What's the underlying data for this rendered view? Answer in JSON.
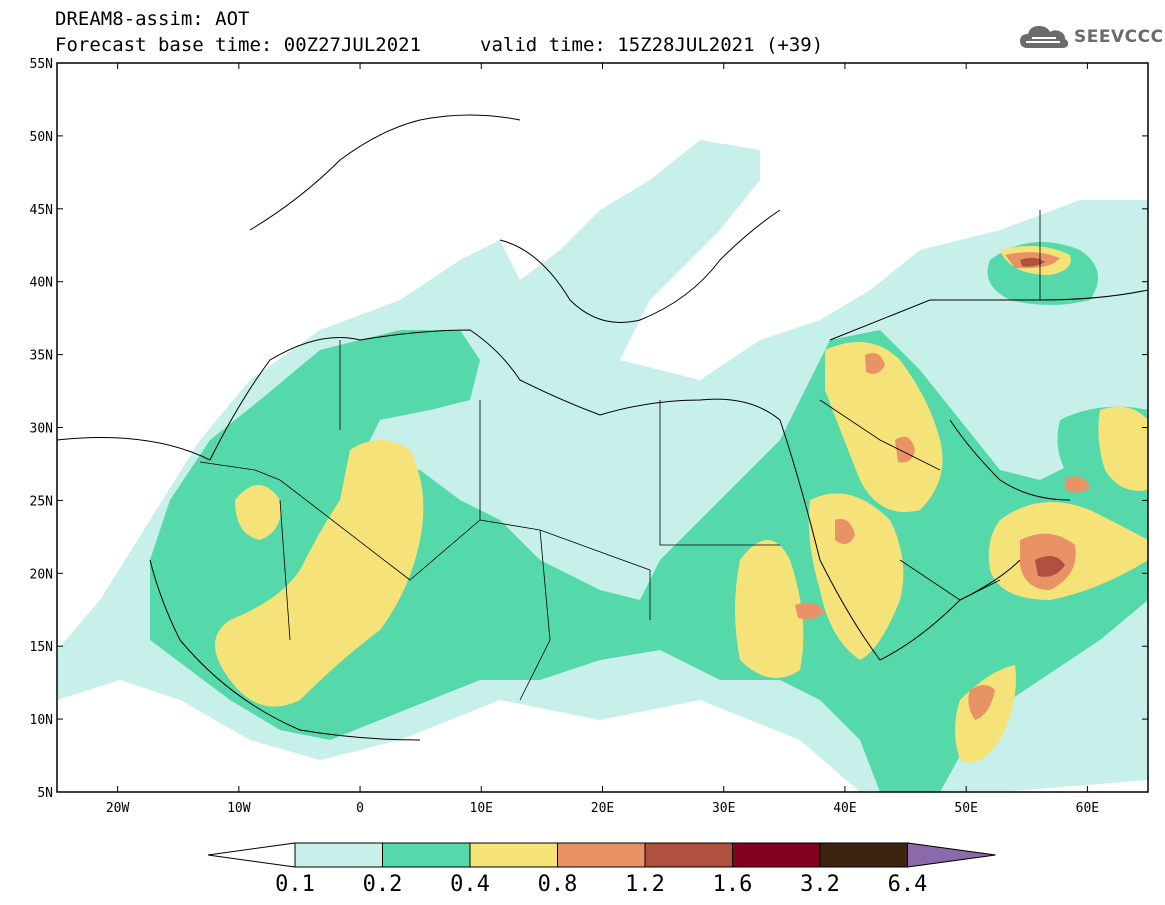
{
  "header": {
    "line1": "DREAM8-assim: AOT",
    "line2": "Forecast base time: 00Z27JUL2021",
    "valid": "valid time: 15Z28JUL2021 (+39)",
    "logo_text": "SEEVCCC",
    "logo_icon": "cloud-icon"
  },
  "map": {
    "lon_min": -25,
    "lon_max": 65,
    "lat_min": 5,
    "lat_max": 55,
    "lat_ticks": [
      {
        "value": 55,
        "label": "55N"
      },
      {
        "value": 50,
        "label": "50N"
      },
      {
        "value": 45,
        "label": "45N"
      },
      {
        "value": 40,
        "label": "40N"
      },
      {
        "value": 35,
        "label": "35N"
      },
      {
        "value": 30,
        "label": "30N"
      },
      {
        "value": 25,
        "label": "25N"
      },
      {
        "value": 20,
        "label": "20N"
      },
      {
        "value": 15,
        "label": "15N"
      },
      {
        "value": 10,
        "label": "10N"
      },
      {
        "value": 5,
        "label": "5N"
      }
    ],
    "lon_ticks": [
      {
        "value": -20,
        "label": "20W"
      },
      {
        "value": -10,
        "label": "10W"
      },
      {
        "value": 0,
        "label": "0"
      },
      {
        "value": 10,
        "label": "10E"
      },
      {
        "value": 20,
        "label": "20E"
      },
      {
        "value": 30,
        "label": "30E"
      },
      {
        "value": 40,
        "label": "40E"
      },
      {
        "value": 50,
        "label": "50E"
      },
      {
        "value": 60,
        "label": "60E"
      }
    ]
  },
  "legend": {
    "colors": [
      "#ffffff",
      "#c8f0ea",
      "#55d9aa",
      "#f5e37a",
      "#e89266",
      "#b0503e",
      "#820020",
      "#3c2410",
      "#8a6aa8"
    ],
    "labels": [
      "0.1",
      "0.2",
      "0.4",
      "0.8",
      "1.2",
      "1.6",
      "3.2",
      "6.4"
    ]
  }
}
